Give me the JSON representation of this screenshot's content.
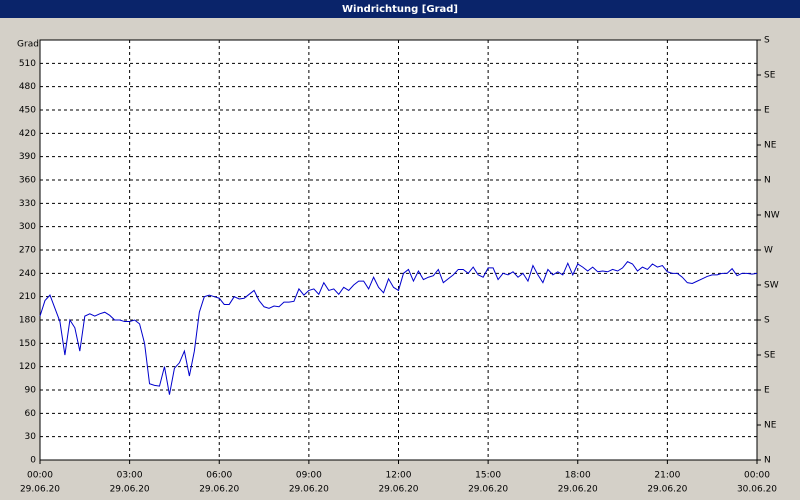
{
  "chart_data": {
    "type": "line",
    "title": "Windrichtung [Grad]",
    "y_label": "Grad",
    "x": [
      0,
      10,
      20,
      30,
      40,
      50,
      60,
      70,
      80,
      90,
      100,
      110,
      120,
      130,
      140,
      150,
      160,
      170,
      180,
      190,
      200,
      210,
      220,
      230,
      240,
      250,
      260,
      270,
      280,
      290,
      300,
      310,
      320,
      330,
      340,
      350,
      360,
      370,
      380,
      390,
      400,
      410,
      420,
      430,
      440,
      450,
      460,
      470,
      480,
      490,
      500,
      510,
      520,
      530,
      540,
      550,
      560,
      570,
      580,
      590,
      600,
      610,
      620,
      630,
      640,
      650,
      660,
      670,
      680,
      690,
      700,
      710,
      720,
      730,
      740,
      750,
      760,
      770,
      780,
      790,
      800,
      810,
      820,
      830,
      840,
      850,
      860,
      870,
      880,
      890,
      900,
      910,
      920,
      930,
      940,
      950,
      960,
      970,
      980,
      990,
      1000,
      1010,
      1020,
      1030,
      1040,
      1050,
      1060,
      1070,
      1080,
      1090,
      1100,
      1110,
      1120,
      1130,
      1140,
      1150,
      1160,
      1170,
      1180,
      1190,
      1200,
      1210,
      1220,
      1230,
      1240,
      1250,
      1260,
      1270,
      1280,
      1290,
      1300,
      1310,
      1320,
      1330,
      1340,
      1350,
      1360,
      1370,
      1380,
      1390,
      1400,
      1410,
      1420,
      1430,
      1440
    ],
    "series": [
      {
        "color": "#0000cc",
        "values": [
          185,
          205,
          212,
          195,
          178,
          135,
          180,
          170,
          140,
          185,
          188,
          185,
          188,
          190,
          186,
          180,
          180,
          178,
          178,
          180,
          175,
          150,
          98,
          96,
          95,
          120,
          84,
          118,
          125,
          140,
          108,
          140,
          190,
          210,
          212,
          210,
          208,
          200,
          200,
          210,
          207,
          208,
          213,
          218,
          205,
          197,
          195,
          198,
          197,
          203,
          203,
          204,
          220,
          212,
          218,
          220,
          213,
          228,
          218,
          220,
          213,
          222,
          218,
          225,
          230,
          230,
          220,
          235,
          222,
          215,
          233,
          222,
          218,
          240,
          245,
          230,
          243,
          232,
          235,
          237,
          245,
          228,
          233,
          238,
          245,
          245,
          240,
          248,
          238,
          235,
          247,
          247,
          232,
          240,
          238,
          242,
          235,
          240,
          230,
          250,
          238,
          228,
          245,
          238,
          242,
          238,
          253,
          238,
          252,
          248,
          243,
          248,
          242,
          243,
          242,
          245,
          243,
          247,
          255,
          252,
          243,
          248,
          245,
          252,
          248,
          250,
          242,
          240,
          240,
          235,
          228,
          227,
          230,
          233,
          236,
          238,
          238,
          240,
          240,
          246,
          237,
          240,
          240,
          239,
          240
        ]
      }
    ],
    "xlim": [
      0,
      1440
    ],
    "xticks": [
      {
        "value": 0,
        "label": "00:00",
        "date": "29.06.20"
      },
      {
        "value": 180,
        "label": "03:00",
        "date": "29.06.20"
      },
      {
        "value": 360,
        "label": "06:00",
        "date": "29.06.20"
      },
      {
        "value": 540,
        "label": "09:00",
        "date": "29.06.20"
      },
      {
        "value": 720,
        "label": "12:00",
        "date": "29.06.20"
      },
      {
        "value": 900,
        "label": "15:00",
        "date": "29.06.20"
      },
      {
        "value": 1080,
        "label": "18:00",
        "date": "29.06.20"
      },
      {
        "value": 1260,
        "label": "21:00",
        "date": "29.06.20"
      },
      {
        "value": 1440,
        "label": "00:00",
        "date": "30.06.20"
      }
    ],
    "ylim": [
      0,
      540
    ],
    "yticks": [
      0,
      30,
      60,
      90,
      120,
      150,
      180,
      210,
      240,
      270,
      300,
      330,
      360,
      390,
      420,
      450,
      480,
      510
    ],
    "y2lim": [
      0,
      540
    ],
    "y2ticks": [
      {
        "value": 0,
        "label": "N"
      },
      {
        "value": 45,
        "label": "NE"
      },
      {
        "value": 90,
        "label": "E"
      },
      {
        "value": 135,
        "label": "SE"
      },
      {
        "value": 180,
        "label": "S"
      },
      {
        "value": 225,
        "label": "SW"
      },
      {
        "value": 270,
        "label": "W"
      },
      {
        "value": 315,
        "label": "NW"
      },
      {
        "value": 360,
        "label": "N"
      },
      {
        "value": 405,
        "label": "NE"
      },
      {
        "value": 450,
        "label": "E"
      },
      {
        "value": 495,
        "label": "SE"
      },
      {
        "value": 540,
        "label": "S"
      }
    ],
    "grid": true
  }
}
